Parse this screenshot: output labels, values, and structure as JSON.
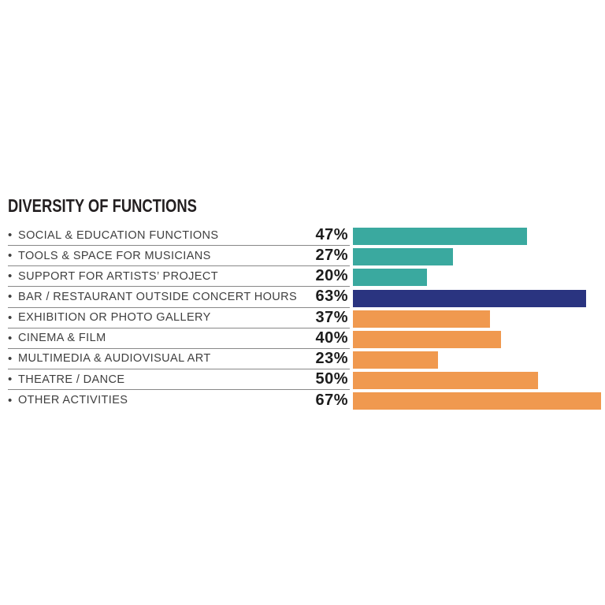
{
  "title": "DIVERSITY OF FUNCTIONS",
  "colors": {
    "teal": "#3aa99f",
    "navy": "#2a3480",
    "orange": "#f0994f",
    "title_text": "#231f20",
    "label_text": "#3f3f3f",
    "percent_text": "#1c1c1c",
    "rule_line": "#888888"
  },
  "chart_data": {
    "type": "bar",
    "orientation": "horizontal",
    "title": "DIVERSITY OF FUNCTIONS",
    "xlabel": "",
    "ylabel": "",
    "xlim": [
      0,
      68
    ],
    "grid": false,
    "legend": "none",
    "value_label_format": "percent",
    "categories": [
      "SOCIAL & EDUCATION FUNCTIONS",
      "TOOLS & SPACE FOR MUSICIANS",
      "SUPPORT FOR ARTISTS’ PROJECT",
      "BAR / RESTAURANT OUTSIDE CONCERT HOURS",
      "EXHIBITION OR PHOTO GALLERY",
      "CINEMA & FILM",
      "MULTIMEDIA & AUDIOVISUAL ART",
      "THEATRE / DANCE",
      "OTHER ACTIVITIES"
    ],
    "values": [
      47,
      27,
      20,
      63,
      37,
      40,
      23,
      50,
      67
    ],
    "value_labels": [
      "47%",
      "27%",
      "20%",
      "63%",
      "37%",
      "40%",
      "23%",
      "50%",
      "67%"
    ],
    "bar_colors": [
      "#3aa99f",
      "#3aa99f",
      "#3aa99f",
      "#2a3480",
      "#f0994f",
      "#f0994f",
      "#f0994f",
      "#f0994f",
      "#f0994f"
    ]
  }
}
